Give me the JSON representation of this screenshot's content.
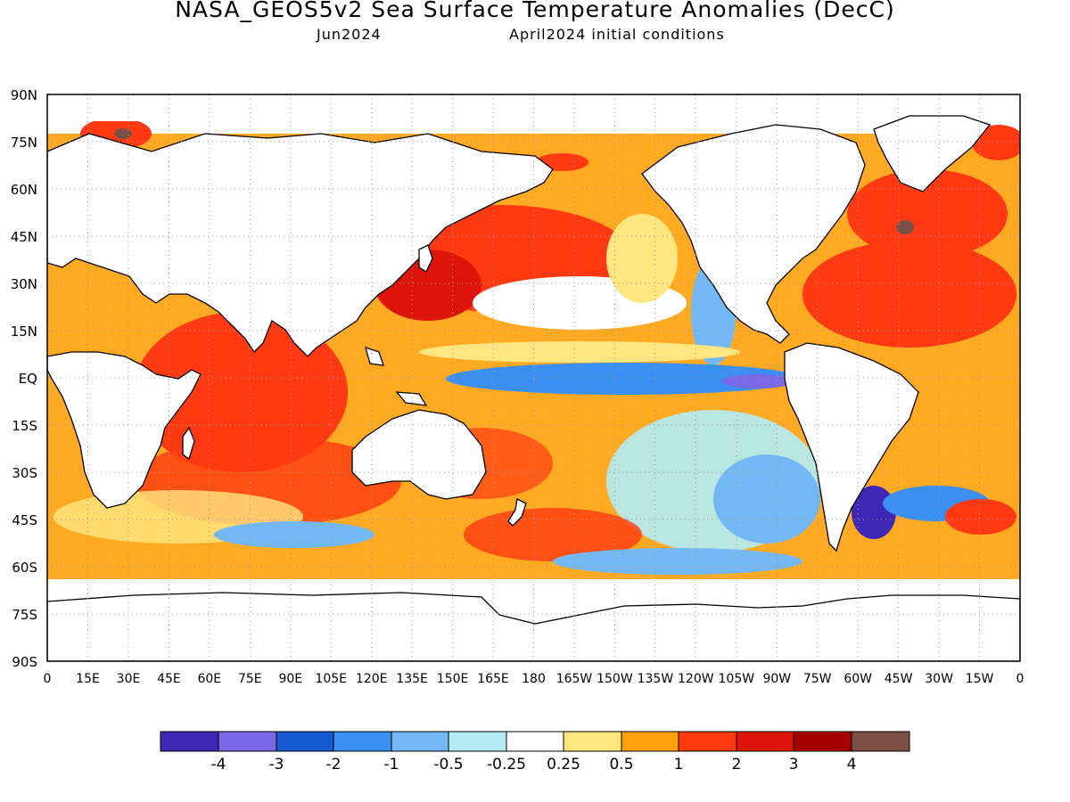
{
  "header": {
    "title": "NASA_GEOS5v2 Sea Surface Temperature Anomalies (DecC)",
    "subtitle_left": "Jun2024",
    "subtitle_right": "April2024 initial conditions"
  },
  "map": {
    "lat_labels": [
      "90N",
      "75N",
      "60N",
      "45N",
      "30N",
      "15N",
      "EQ",
      "15S",
      "30S",
      "45S",
      "60S",
      "75S",
      "90S"
    ],
    "lon_labels": [
      "0",
      "15E",
      "30E",
      "45E",
      "60E",
      "75E",
      "90E",
      "105E",
      "120E",
      "135E",
      "150E",
      "165E",
      "180",
      "165W",
      "150W",
      "135W",
      "120W",
      "105W",
      "90W",
      "75W",
      "60W",
      "45W",
      "30W",
      "15W",
      "0"
    ],
    "grid": "dotted"
  },
  "legend": {
    "colors": [
      "#3f27b5",
      "#7b68e8",
      "#1559d0",
      "#3a8ff0",
      "#73b8f5",
      "#b3ecf7",
      "#ffffff",
      "#ffe680",
      "#ffa10a",
      "#ff3a12",
      "#dc1409",
      "#a60000",
      "#7a4f46"
    ],
    "labels": [
      "-4",
      "-3",
      "-2",
      "-1",
      "-0.5",
      "-0.25",
      "0.25",
      "0.5",
      "1",
      "2",
      "3",
      "4"
    ]
  },
  "palette": {
    "land": "#ffffff",
    "coast": "#000000"
  }
}
